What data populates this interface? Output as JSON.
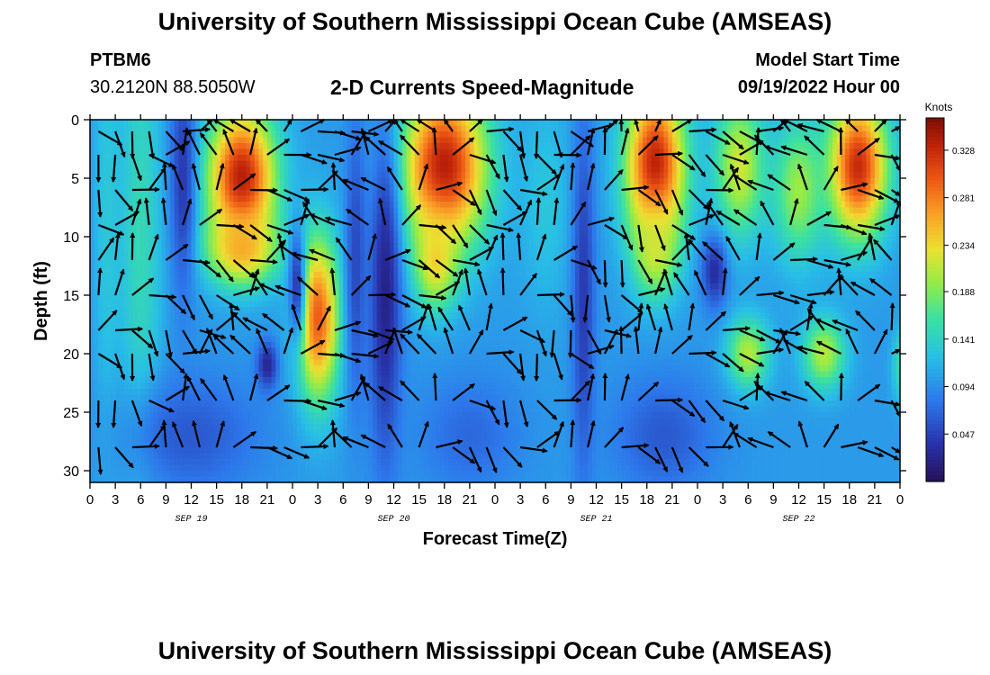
{
  "header": {
    "title": "University of Southern Mississippi Ocean Cube (AMSEAS)",
    "station_id": "PTBM6",
    "station_coords": "30.2120N  88.5050W",
    "plot_title": "2-D Currents Speed-Magnitude",
    "model_start_label": "Model Start Time",
    "model_start_value": "09/19/2022 Hour 00"
  },
  "footer": {
    "title": "University of Southern Mississippi Ocean Cube (AMSEAS)"
  },
  "chart_data": {
    "type": "heatmap",
    "xlabel": "Forecast Time(Z)",
    "ylabel": "Depth (ft)",
    "ylim": [
      0,
      31
    ],
    "xlim_hours": [
      0,
      96
    ],
    "x_tick_labels": [
      "0",
      "3",
      "6",
      "9",
      "12",
      "15",
      "18",
      "21",
      "0",
      "3",
      "6",
      "9",
      "12",
      "15",
      "18",
      "21",
      "0",
      "3",
      "6",
      "9",
      "12",
      "15",
      "18",
      "21",
      "0",
      "3",
      "6",
      "9",
      "12",
      "15",
      "18",
      "21",
      "0"
    ],
    "y_ticks": [
      0,
      5,
      10,
      15,
      20,
      25,
      30
    ],
    "date_labels": [
      {
        "text": "SEP 19",
        "hour": 12
      },
      {
        "text": "SEP 20",
        "hour": 36
      },
      {
        "text": "SEP 21",
        "hour": 60
      },
      {
        "text": "SEP 22",
        "hour": 84
      }
    ],
    "colorbar": {
      "title": "Knots",
      "ticks": [
        0.047,
        0.094,
        0.141,
        0.188,
        0.234,
        0.281,
        0.328
      ],
      "range": [
        0.0,
        0.36
      ]
    },
    "speed_hotspots_knots": [
      {
        "hour": 2,
        "depth": 8,
        "radius_h": 1.6,
        "radius_d": 20,
        "speed": 0.13
      },
      {
        "hour": 6,
        "depth": 10,
        "radius_h": 2.5,
        "radius_d": 22,
        "speed": 0.15
      },
      {
        "hour": 18,
        "depth": 5,
        "radius_h": 4,
        "radius_d": 6,
        "speed": 0.34
      },
      {
        "hour": 18,
        "depth": 11,
        "radius_h": 4,
        "radius_d": 3,
        "speed": 0.26
      },
      {
        "hour": 27,
        "depth": 17,
        "radius_h": 2.5,
        "radius_d": 7,
        "speed": 0.3
      },
      {
        "hour": 42,
        "depth": 4,
        "radius_h": 5,
        "radius_d": 7,
        "speed": 0.34
      },
      {
        "hour": 41,
        "depth": 12,
        "radius_h": 2.5,
        "radius_d": 4,
        "speed": 0.24
      },
      {
        "hour": 54,
        "depth": 7,
        "radius_h": 3,
        "radius_d": 9,
        "speed": 0.13
      },
      {
        "hour": 67,
        "depth": 4,
        "radius_h": 3.5,
        "radius_d": 7,
        "speed": 0.34
      },
      {
        "hour": 67,
        "depth": 11,
        "radius_h": 2.5,
        "radius_d": 4,
        "speed": 0.22
      },
      {
        "hour": 77,
        "depth": 4,
        "radius_h": 3,
        "radius_d": 6,
        "speed": 0.22
      },
      {
        "hour": 78,
        "depth": 20,
        "radius_h": 2.5,
        "radius_d": 3,
        "speed": 0.21
      },
      {
        "hour": 87,
        "depth": 20,
        "radius_h": 2.5,
        "radius_d": 3,
        "speed": 0.21
      },
      {
        "hour": 91,
        "depth": 4,
        "radius_h": 3.5,
        "radius_d": 6,
        "speed": 0.33
      },
      {
        "hour": 84,
        "depth": 6,
        "radius_h": 3,
        "radius_d": 6,
        "speed": 0.2
      },
      {
        "hour": 96,
        "depth": 21,
        "radius_h": 1,
        "radius_d": 3,
        "speed": 0.15
      }
    ],
    "speed_lows_knots": [
      {
        "hour": 11,
        "depth": 5,
        "radius_h": 1.5,
        "radius_d": 10,
        "speed": 0.04
      },
      {
        "hour": 21,
        "depth": 21,
        "radius_h": 1.2,
        "radius_d": 2,
        "speed": 0.02
      },
      {
        "hour": 24.5,
        "depth": 14,
        "radius_h": 1,
        "radius_d": 5,
        "speed": 0.04
      },
      {
        "hour": 31.5,
        "depth": 12,
        "radius_h": 1.2,
        "radius_d": 12,
        "speed": 0.05
      },
      {
        "hour": 35,
        "depth": 15,
        "radius_h": 1.8,
        "radius_d": 14,
        "speed": 0.02
      },
      {
        "hour": 58.5,
        "depth": 15,
        "radius_h": 1.3,
        "radius_d": 15,
        "speed": 0.04
      },
      {
        "hour": 74,
        "depth": 13,
        "radius_h": 1.5,
        "radius_d": 3,
        "speed": 0.03
      },
      {
        "hour": 68,
        "depth": 27,
        "radius_h": 6,
        "radius_d": 5,
        "speed": 0.06
      },
      {
        "hour": 12,
        "depth": 27,
        "radius_h": 8,
        "radius_d": 5,
        "speed": 0.06
      },
      {
        "hour": 45,
        "depth": 27,
        "radius_h": 6,
        "radius_d": 5,
        "speed": 0.07
      }
    ],
    "vector_rows_depth_ft": [
      1,
      3,
      6,
      9,
      12,
      15,
      18,
      20,
      24,
      28
    ],
    "vector_hour_step": 2
  }
}
